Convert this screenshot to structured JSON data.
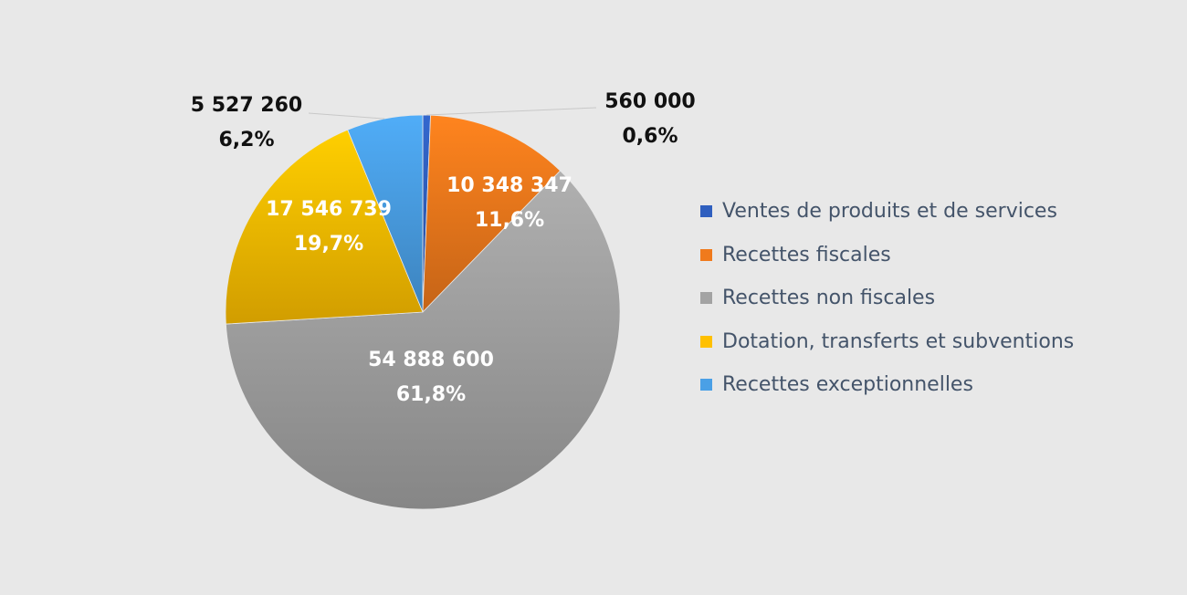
{
  "chart_data": {
    "type": "pie",
    "title": "",
    "categories": [
      "Ventes de produits et de services",
      "Recettes fiscales",
      "Recettes non fiscales",
      "Dotation, transferts et subventions",
      "Recettes exceptionnelles"
    ],
    "values": [
      560000,
      10348347,
      54888600,
      17546739,
      5527260
    ],
    "value_labels": [
      "560 000",
      "10 348 347",
      "54 888 600",
      "17 546 739",
      "5 527 260"
    ],
    "percent_labels": [
      "0,6%",
      "11,6%",
      "61,8%",
      "19,7%",
      "6,2%"
    ],
    "colors": [
      "#2f5fbf",
      "#f07a1c",
      "#a3a3a3",
      "#ffc000",
      "#4aa0e6"
    ],
    "legend_placement": "right",
    "start_angle_deg": 0,
    "direction": "clockwise"
  }
}
